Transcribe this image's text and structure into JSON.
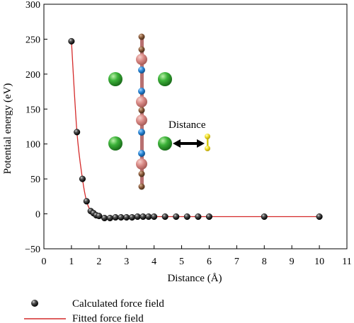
{
  "chart_data": {
    "type": "scatter",
    "xlabel": "Distance (Å)",
    "ylabel": "Potential energy (eV)",
    "xlim": [
      0,
      11
    ],
    "ylim": [
      -50,
      300
    ],
    "xticks": [
      0,
      1,
      2,
      3,
      4,
      5,
      6,
      7,
      8,
      9,
      10,
      11
    ],
    "yticks": [
      -50,
      0,
      50,
      100,
      150,
      200,
      250,
      300
    ],
    "grid": false,
    "legend_position": "bottom-left, below plot",
    "series": [
      {
        "name": "Calculated force field",
        "kind": "scatter",
        "marker": "black sphere",
        "x": [
          1.0,
          1.2,
          1.4,
          1.55,
          1.7,
          1.8,
          1.9,
          2.0,
          2.2,
          2.4,
          2.6,
          2.8,
          3.0,
          3.2,
          3.4,
          3.6,
          3.8,
          4.0,
          4.4,
          4.8,
          5.2,
          5.6,
          6.0,
          8.0,
          10.0
        ],
        "y": [
          247,
          117,
          50,
          18,
          4,
          1,
          -2,
          -3,
          -6,
          -6,
          -5,
          -5,
          -5,
          -5,
          -4,
          -4,
          -4,
          -4,
          -4,
          -4,
          -4,
          -4,
          -4,
          -4,
          -4
        ]
      },
      {
        "name": "Fitted force field",
        "kind": "line",
        "color": "#d42a2a"
      }
    ],
    "inset": {
      "label": "Distance"
    }
  }
}
